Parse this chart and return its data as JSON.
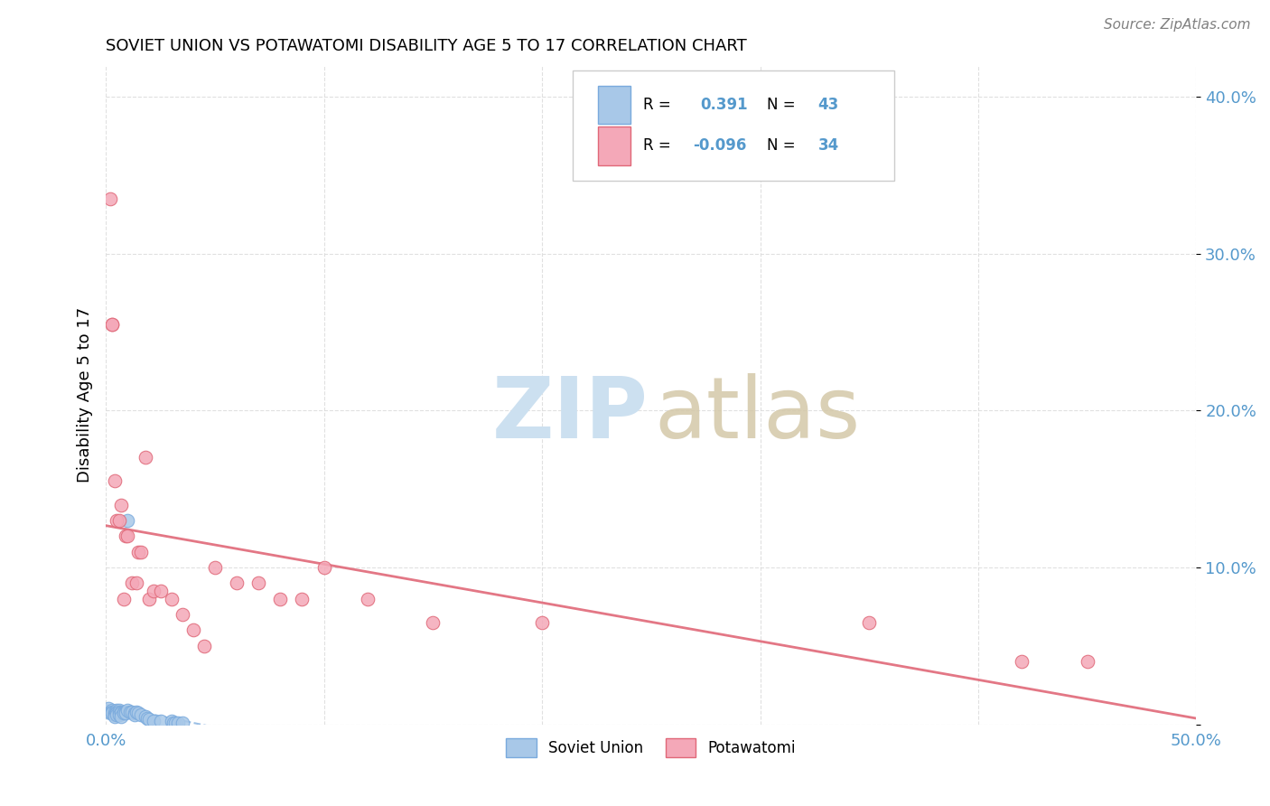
{
  "title": "SOVIET UNION VS POTAWATOMI DISABILITY AGE 5 TO 17 CORRELATION CHART",
  "source": "Source: ZipAtlas.com",
  "ylabel": "Disability Age 5 to 17",
  "xlim": [
    0.0,
    0.5
  ],
  "ylim": [
    0.0,
    0.42
  ],
  "soviet_R": 0.391,
  "soviet_N": 43,
  "potawatomi_R": -0.096,
  "potawatomi_N": 34,
  "soviet_color": "#a8c8e8",
  "potawatomi_color": "#f4a8b8",
  "trendline_soviet_color": "#7aaadd",
  "trendline_potawatomi_color": "#e06878",
  "watermark_zip_color": "#cce0f0",
  "watermark_atlas_color": "#d4c8a8",
  "background_color": "#ffffff",
  "tick_color": "#5599cc",
  "grid_color": "#dddddd",
  "soviet_scatter_x": [
    0.001,
    0.002,
    0.002,
    0.003,
    0.003,
    0.003,
    0.004,
    0.004,
    0.004,
    0.004,
    0.005,
    0.005,
    0.005,
    0.005,
    0.006,
    0.006,
    0.006,
    0.007,
    0.007,
    0.007,
    0.008,
    0.008,
    0.009,
    0.009,
    0.01,
    0.01,
    0.011,
    0.012,
    0.013,
    0.013,
    0.014,
    0.015,
    0.016,
    0.018,
    0.019,
    0.02,
    0.022,
    0.025,
    0.03,
    0.031,
    0.032,
    0.033,
    0.035
  ],
  "soviet_scatter_y": [
    0.01,
    0.008,
    0.007,
    0.009,
    0.008,
    0.007,
    0.007,
    0.008,
    0.006,
    0.005,
    0.009,
    0.008,
    0.007,
    0.006,
    0.009,
    0.008,
    0.006,
    0.008,
    0.007,
    0.005,
    0.008,
    0.007,
    0.008,
    0.007,
    0.13,
    0.009,
    0.008,
    0.008,
    0.007,
    0.006,
    0.008,
    0.007,
    0.006,
    0.005,
    0.004,
    0.003,
    0.002,
    0.002,
    0.002,
    0.001,
    0.001,
    0.001,
    0.001
  ],
  "potawatomi_scatter_x": [
    0.002,
    0.003,
    0.003,
    0.004,
    0.005,
    0.006,
    0.007,
    0.008,
    0.009,
    0.01,
    0.012,
    0.014,
    0.015,
    0.016,
    0.018,
    0.02,
    0.022,
    0.025,
    0.03,
    0.035,
    0.04,
    0.045,
    0.05,
    0.06,
    0.07,
    0.08,
    0.09,
    0.1,
    0.12,
    0.15,
    0.2,
    0.35,
    0.42,
    0.45
  ],
  "potawatomi_scatter_y": [
    0.335,
    0.255,
    0.255,
    0.155,
    0.13,
    0.13,
    0.14,
    0.08,
    0.12,
    0.12,
    0.09,
    0.09,
    0.11,
    0.11,
    0.17,
    0.08,
    0.085,
    0.085,
    0.08,
    0.07,
    0.06,
    0.05,
    0.1,
    0.09,
    0.09,
    0.08,
    0.08,
    0.1,
    0.08,
    0.065,
    0.065,
    0.065,
    0.04,
    0.04
  ]
}
